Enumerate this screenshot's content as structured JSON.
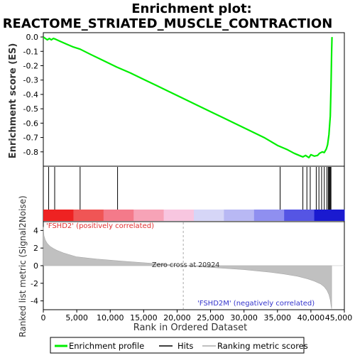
{
  "chart_data": {
    "type": "line",
    "title_line1": "Enrichment plot:",
    "title_line2": "REACTOME_STRIATED_MUSCLE_CONTRACTION",
    "top_panel": {
      "ylabel": "Enrichment score (ES)",
      "ylim": [
        -0.9,
        0.03
      ],
      "yticks": [
        0.0,
        -0.1,
        -0.2,
        -0.3,
        -0.4,
        -0.5,
        -0.6,
        -0.7,
        -0.8
      ],
      "ytick_labels": [
        "0.0",
        "-0.1",
        "-0.2",
        "-0.3",
        "-0.4",
        "-0.5",
        "-0.6",
        "-0.7",
        "-0.8"
      ],
      "series": [
        {
          "name": "Enrichment profile",
          "color": "#00ee00",
          "x": [
            0,
            600,
            900,
            1200,
            1500,
            1800,
            2500,
            3500,
            4500,
            5500,
            7000,
            9000,
            11000,
            13000,
            15000,
            17000,
            19000,
            21000,
            23000,
            25000,
            27000,
            29000,
            31000,
            33000,
            35000,
            35500,
            36500,
            37500,
            38500,
            38800,
            39200,
            39700,
            40000,
            40500,
            41000,
            41300,
            41700,
            42000,
            42300,
            42500,
            42700,
            42900,
            43000,
            43100,
            43150
          ],
          "y": [
            0.0,
            -0.02,
            -0.01,
            -0.02,
            -0.01,
            -0.015,
            -0.03,
            -0.05,
            -0.07,
            -0.085,
            -0.12,
            -0.165,
            -0.21,
            -0.25,
            -0.295,
            -0.34,
            -0.385,
            -0.43,
            -0.475,
            -0.52,
            -0.565,
            -0.61,
            -0.655,
            -0.7,
            -0.755,
            -0.765,
            -0.785,
            -0.81,
            -0.83,
            -0.835,
            -0.825,
            -0.84,
            -0.82,
            -0.83,
            -0.825,
            -0.81,
            -0.8,
            -0.805,
            -0.78,
            -0.75,
            -0.68,
            -0.55,
            -0.35,
            -0.1,
            0.0
          ]
        }
      ]
    },
    "hits": {
      "label": "Hits",
      "positions": [
        800,
        1700,
        5500,
        11100,
        35400,
        38800,
        39400,
        39900,
        40800,
        41200,
        41600,
        42000,
        42400,
        42600,
        42700,
        42800,
        42900,
        43000
      ]
    },
    "heatmap_colors": [
      "#ee2222",
      "#f05555",
      "#f47a8a",
      "#f7a3b7",
      "#f8c6e0",
      "#d6d6f7",
      "#b8b8f4",
      "#8f8ff0",
      "#5555e4",
      "#1a1ad0"
    ],
    "bottom_panel": {
      "ylabel": "Ranked list metric (Signal2Noise)",
      "ylim": [
        -5,
        5
      ],
      "yticks": [
        -4,
        -2,
        0,
        2,
        4
      ],
      "ytick_labels": [
        "-4",
        "-2",
        "0",
        "2",
        "4"
      ],
      "series": [
        {
          "name": "Ranking metric scores",
          "color": "#c0c0c0",
          "x": [
            0,
            100,
            300,
            600,
            1000,
            1500,
            2000,
            3000,
            5000,
            8000,
            12000,
            16000,
            20924,
            25000,
            30000,
            34000,
            36000,
            38000,
            39500,
            40500,
            41500,
            42000,
            42400,
            42700,
            42900,
            43000,
            43100
          ],
          "y": [
            4.4,
            3.4,
            2.9,
            2.5,
            2.2,
            1.95,
            1.75,
            1.45,
            1.0,
            0.75,
            0.5,
            0.28,
            0.0,
            -0.2,
            -0.45,
            -0.75,
            -0.95,
            -1.2,
            -1.5,
            -1.75,
            -2.1,
            -2.4,
            -2.8,
            -3.3,
            -3.9,
            -4.5,
            -4.9
          ]
        }
      ],
      "annotations": {
        "positive": "'FSHD2' (positively correlated)",
        "negative": "'FSHD2M' (negatively correlated)",
        "zero_cross": "Zero cross at 20924",
        "zero_cross_x": 20924
      }
    },
    "x_axis": {
      "label": "Rank in Ordered Dataset",
      "xlim": [
        0,
        45000
      ],
      "ticks": [
        0,
        5000,
        10000,
        15000,
        20000,
        25000,
        30000,
        35000,
        40000,
        45000
      ],
      "tick_labels": [
        "0",
        "5,000",
        "10,000",
        "15,000",
        "20,000",
        "25,000",
        "30,000",
        "35,000",
        "40,000",
        "45,000"
      ]
    },
    "legend": {
      "placement": "bottom",
      "entries": [
        {
          "label": "Enrichment profile",
          "color": "#00ee00"
        },
        {
          "label": "Hits",
          "color": "#000000"
        },
        {
          "label": "Ranking metric scores",
          "color": "#c0c0c0"
        }
      ]
    }
  }
}
